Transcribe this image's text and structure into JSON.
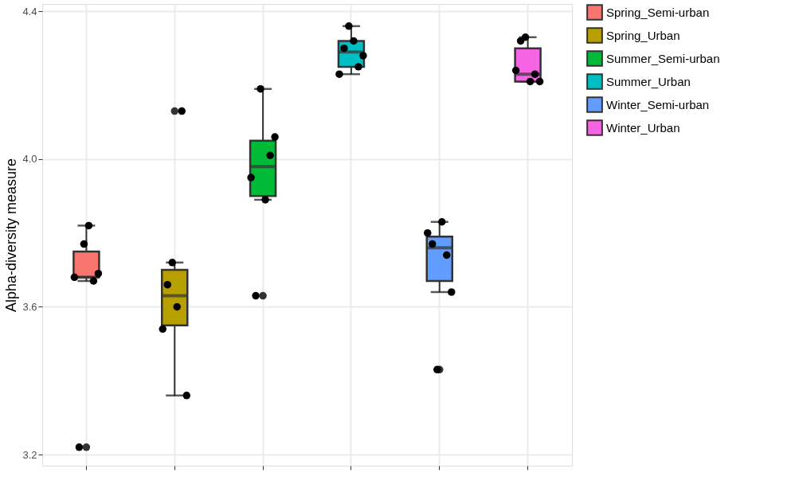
{
  "chart_data": {
    "type": "box",
    "ylabel": "Alpha-diversity measure",
    "categories": [
      null,
      null,
      null,
      null,
      null,
      null
    ],
    "series": [
      {
        "name": "Spring_Semi-urban",
        "color": "#f8766d",
        "boxes": [
          {
            "low": 3.67,
            "q1": 3.68,
            "median": 3.68,
            "q3": 3.75,
            "high": 3.82,
            "outliers": [
              3.22
            ]
          },
          null,
          null,
          null,
          null,
          null
        ]
      },
      {
        "name": "Spring_Urban",
        "color": "#b79f00",
        "boxes": [
          null,
          {
            "low": 3.36,
            "q1": 3.55,
            "median": 3.63,
            "q3": 3.7,
            "high": 3.72,
            "outliers": [
              4.13
            ]
          },
          null,
          null,
          null,
          null
        ]
      },
      {
        "name": "Summer_Semi-urban",
        "color": "#00ba38",
        "boxes": [
          null,
          null,
          {
            "low": 3.89,
            "q1": 3.9,
            "median": 3.98,
            "q3": 4.05,
            "high": 4.19,
            "outliers": [
              3.63
            ]
          },
          null,
          null,
          null
        ]
      },
      {
        "name": "Summer_Urban",
        "color": "#00bfc4",
        "boxes": [
          null,
          null,
          null,
          {
            "low": 4.23,
            "q1": 4.25,
            "median": 4.29,
            "q3": 4.32,
            "high": 4.36
          },
          null,
          null
        ]
      },
      {
        "name": "Winter_Semi-urban",
        "color": "#619cff",
        "boxes": [
          null,
          null,
          null,
          null,
          {
            "low": 3.64,
            "q1": 3.67,
            "median": 3.76,
            "q3": 3.79,
            "high": 3.83,
            "outliers": [
              3.43
            ]
          },
          null
        ]
      },
      {
        "name": "Winter_Urban",
        "color": "#f564e3",
        "boxes": [
          null,
          null,
          null,
          null,
          null,
          {
            "low": 4.21,
            "q1": 4.21,
            "median": 4.23,
            "q3": 4.3,
            "high": 4.33
          }
        ]
      },
      {
        "type": "scatter",
        "color": "#000000",
        "values": [
          3.68,
          3.54,
          3.95,
          4.23,
          3.8,
          4.24
        ]
      },
      {
        "type": "scatter",
        "color": "#000000",
        "values": [
          3.22,
          3.66,
          3.63,
          4.3,
          3.77,
          4.32
        ]
      },
      {
        "type": "scatter",
        "color": "#000000",
        "values": [
          3.77,
          3.72,
          4.19,
          4.36,
          3.43,
          4.33
        ]
      },
      {
        "type": "scatter",
        "color": "#000000",
        "values": [
          3.82,
          3.6,
          3.89,
          4.32,
          3.83,
          4.21
        ]
      },
      {
        "type": "scatter",
        "color": "#000000",
        "values": [
          3.67,
          4.13,
          4.01,
          4.25,
          3.74,
          4.23
        ]
      },
      {
        "type": "scatter",
        "color": "#000000",
        "values": [
          3.69,
          3.36,
          4.06,
          4.28,
          3.64,
          4.21
        ]
      }
    ],
    "ylim": [
      3.17,
      4.42
    ],
    "yticks": [
      {
        "value": 3.2,
        "label": "3.2"
      },
      {
        "value": 3.6,
        "label": "3.6"
      },
      {
        "value": 4,
        "label": "4.0"
      },
      {
        "value": 4.4,
        "label": "4.4"
      }
    ],
    "grid": true,
    "legend": "right",
    "tick_labels": "y",
    "marker": "circle"
  }
}
